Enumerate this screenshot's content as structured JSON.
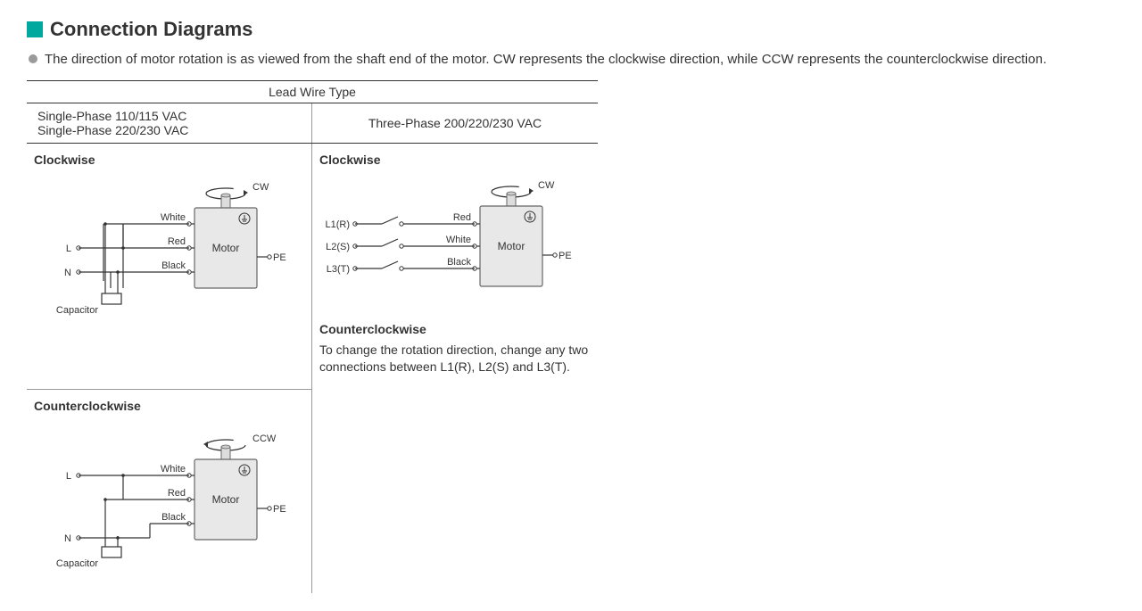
{
  "colors": {
    "accent": "#00a89d",
    "bullet": "#9a9a9a",
    "line": "#333333",
    "motor_fill": "#e8e8e8",
    "motor_stroke": "#666666",
    "text": "#333333",
    "bg": "#ffffff"
  },
  "title": "Connection Diagrams",
  "intro": "The direction of motor rotation is as viewed from the shaft end of the motor. CW represents the clockwise direction, while CCW represents the counterclockwise direction.",
  "table": {
    "header": "Lead Wire Type",
    "col_left_line1": "Single-Phase 110/115 VAC",
    "col_left_line2": "Single-Phase 220/230 VAC",
    "col_right": "Three-Phase 200/220/230 VAC"
  },
  "labels": {
    "clockwise": "Clockwise",
    "counterclockwise": "Counterclockwise",
    "cw": "CW",
    "ccw": "CCW",
    "motor": "Motor",
    "pe": "PE",
    "L": "L",
    "N": "N",
    "capacitor": "Capacitor",
    "white": "White",
    "red": "Red",
    "black": "Black",
    "L1": "L1(R)",
    "L2": "L2(S)",
    "L3": "L3(T)"
  },
  "three_phase_note": "To change the rotation direction, change any two connections between L1(R), L2(S) and L3(T).",
  "diagram_style": {
    "stroke_width": 1.2,
    "font_size_small": 11,
    "font_size_label": 12,
    "terminal_radius": 2.2,
    "motor_width": 70,
    "motor_height": 90
  }
}
